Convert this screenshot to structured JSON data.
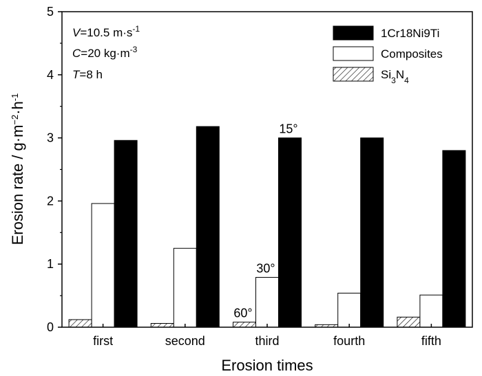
{
  "chart_data": {
    "type": "bar",
    "title": "",
    "xlabel": "Erosion times",
    "ylabel": "Erosion rate / g·m",
    "ylabel_exp1": "−2",
    "ylabel_mid": "·h",
    "ylabel_exp2": "-1",
    "ylim": [
      0,
      5
    ],
    "yticks": [
      "0",
      "1",
      "2",
      "3",
      "4",
      "5"
    ],
    "categories": [
      "first",
      "second",
      "third",
      "fourth",
      "fifth"
    ],
    "series": [
      {
        "name": "Si",
        "name_sub1": "3",
        "name_mid": "N",
        "name_sub2": "4",
        "values": [
          0.12,
          0.06,
          0.08,
          0.04,
          0.16
        ],
        "fill": "hatch"
      },
      {
        "name": "Composites",
        "values": [
          1.96,
          1.25,
          0.79,
          0.54,
          0.51
        ],
        "fill": "#ffffff"
      },
      {
        "name": "1Cr18Ni9Ti",
        "values": [
          2.96,
          3.18,
          3.0,
          3.0,
          2.8
        ],
        "fill": "#000000"
      }
    ],
    "annotations": [
      {
        "text": "60°",
        "category": "third",
        "series": 0
      },
      {
        "text": "30°",
        "category": "third",
        "series": 1
      },
      {
        "text": "15°",
        "category": "third",
        "series": 2
      }
    ],
    "conditions": [
      {
        "var": "V",
        "text": "=10.5 m·s",
        "sup": "-1"
      },
      {
        "var": "C",
        "text": "=20 kg·m",
        "sup": "-3"
      },
      {
        "var": "T",
        "text": "=8 h",
        "sup": ""
      }
    ],
    "legend_position": "top-right",
    "grid": false
  }
}
